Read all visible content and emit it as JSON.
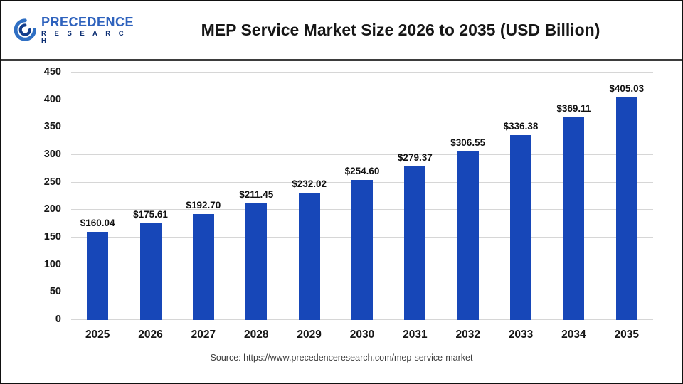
{
  "logo": {
    "name": "PRECEDENCE",
    "subtitle": "R E S E A R C H"
  },
  "header": {
    "title": "MEP Service Market Size 2026 to 2035 (USD Billion)"
  },
  "chart_data": {
    "type": "bar",
    "title": "MEP Service Market Size 2026 to 2035 (USD Billion)",
    "categories": [
      "2025",
      "2026",
      "2027",
      "2028",
      "2029",
      "2030",
      "2031",
      "2032",
      "2033",
      "2034",
      "2035"
    ],
    "values": [
      160.04,
      175.61,
      192.7,
      211.45,
      232.02,
      254.6,
      279.37,
      306.55,
      336.38,
      369.11,
      405.03
    ],
    "value_label_prefix": "$",
    "xlabel": "",
    "ylabel": "",
    "ylim": [
      0,
      450
    ],
    "ytick_step": 50,
    "grid": "horizontal",
    "legend": "none",
    "bar_color": "#1747b8"
  },
  "footer": {
    "source": "Source: https://www.precedenceresearch.com/mep-service-market"
  }
}
